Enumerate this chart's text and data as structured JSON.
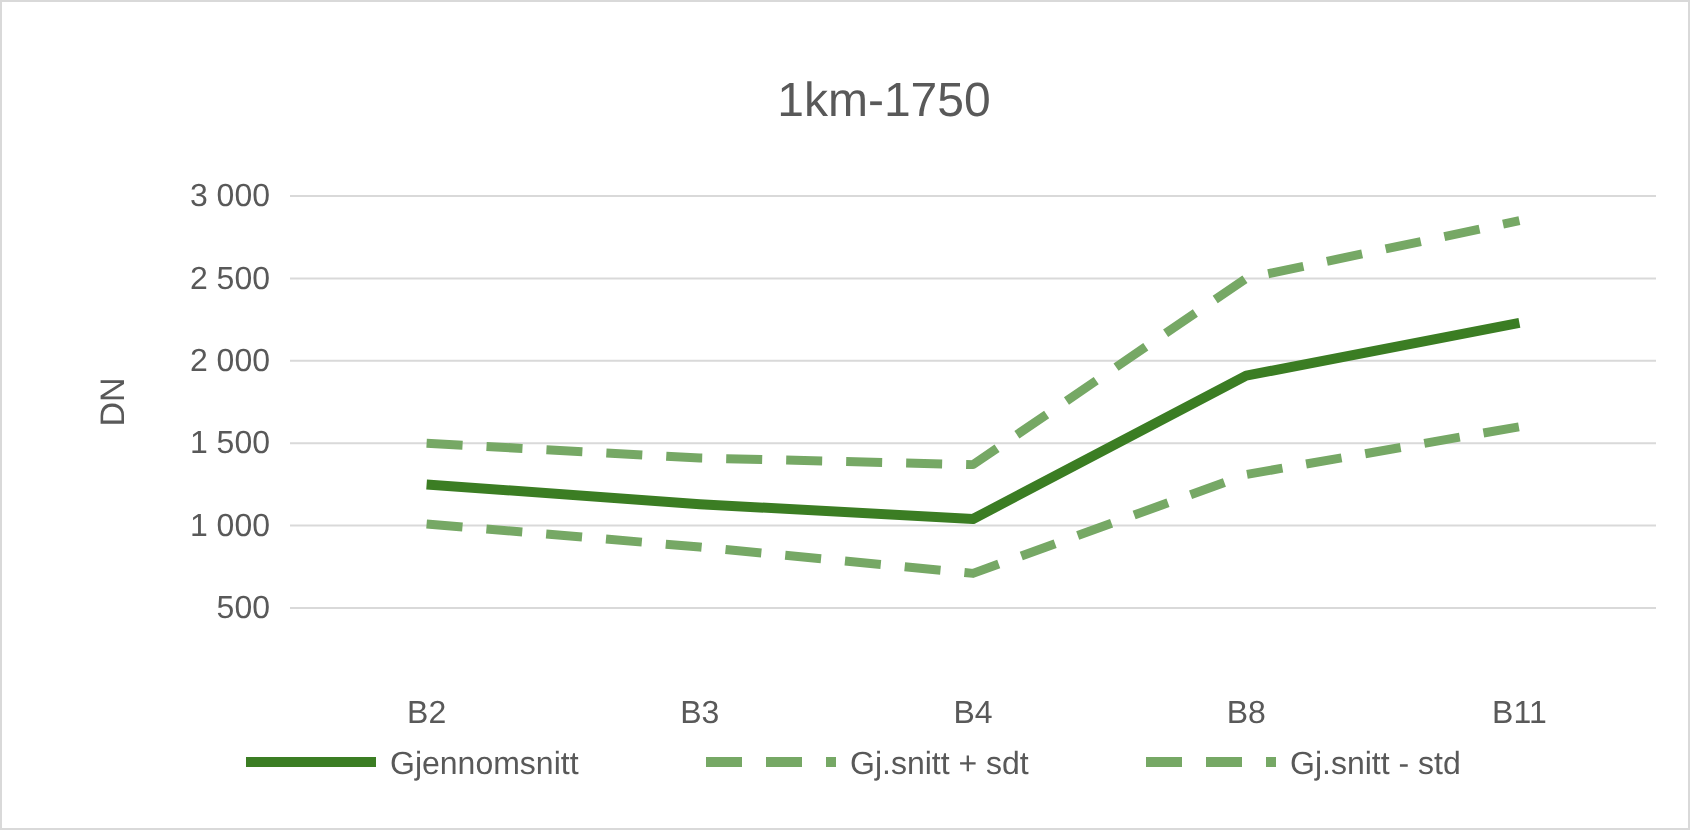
{
  "chart_data": {
    "type": "line",
    "title": "1km-1750",
    "ylabel": "DN",
    "categories": [
      "B2",
      "B3",
      "B4",
      "B8",
      "B11"
    ],
    "series": [
      {
        "name": "Gjennomsnitt",
        "color": "#3b7d23",
        "line_style": "solid",
        "values": [
          1250,
          1130,
          1040,
          1910,
          2230
        ]
      },
      {
        "name": "Gj.snitt + sdt",
        "color": "#76a865",
        "line_style": "dashed",
        "values": [
          1500,
          1410,
          1370,
          2500,
          2850
        ]
      },
      {
        "name": "Gj.snitt - std",
        "color": "#76a865",
        "line_style": "dashed",
        "values": [
          1010,
          870,
          710,
          1310,
          1600
        ]
      }
    ],
    "ylim": [
      500,
      3000
    ],
    "yticks": [
      {
        "value": 500,
        "label": "500"
      },
      {
        "value": 1000,
        "label": "1 000"
      },
      {
        "value": 1500,
        "label": "1 500"
      },
      {
        "value": 2000,
        "label": "2 000"
      },
      {
        "value": 2500,
        "label": "2 500"
      },
      {
        "value": 3000,
        "label": "3 000"
      }
    ],
    "grid": "y",
    "legend": "bottom",
    "marker": "none"
  }
}
